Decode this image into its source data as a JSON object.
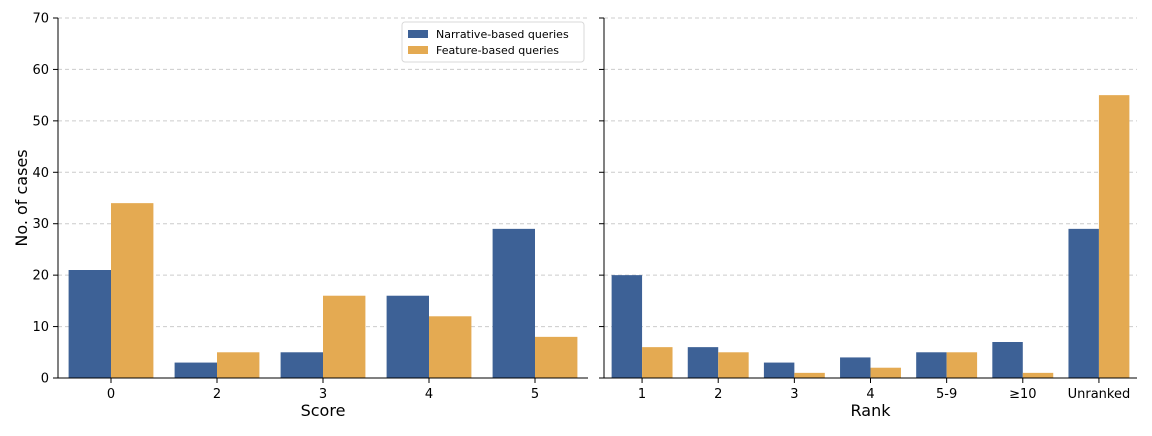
{
  "colors": {
    "narrative": "#3d6196",
    "feature": "#e4aa52"
  },
  "chart_data": [
    {
      "type": "bar",
      "xlabel": "Score",
      "ylabel": "No. of cases",
      "ylim": [
        0,
        70
      ],
      "yticks": [
        0,
        10,
        20,
        30,
        40,
        50,
        60,
        70
      ],
      "grid": true,
      "legend": "top-right",
      "categories": [
        "0",
        "2",
        "3",
        "4",
        "5"
      ],
      "series": [
        {
          "name": "Narrative-based queries",
          "values": [
            21,
            3,
            5,
            16,
            29
          ]
        },
        {
          "name": "Feature-based queries",
          "values": [
            34,
            5,
            16,
            12,
            8
          ]
        }
      ]
    },
    {
      "type": "bar",
      "xlabel": "Rank",
      "ylabel": "",
      "ylim": [
        0,
        70
      ],
      "yticks": [
        0,
        10,
        20,
        30,
        40,
        50,
        60,
        70
      ],
      "grid": true,
      "legend": "none",
      "categories": [
        "1",
        "2",
        "3",
        "4",
        "5-9",
        "≥10",
        "Unranked"
      ],
      "series": [
        {
          "name": "Narrative-based queries",
          "values": [
            20,
            6,
            3,
            4,
            5,
            7,
            29
          ]
        },
        {
          "name": "Feature-based queries",
          "values": [
            6,
            5,
            1,
            2,
            5,
            1,
            55
          ]
        }
      ]
    }
  ]
}
